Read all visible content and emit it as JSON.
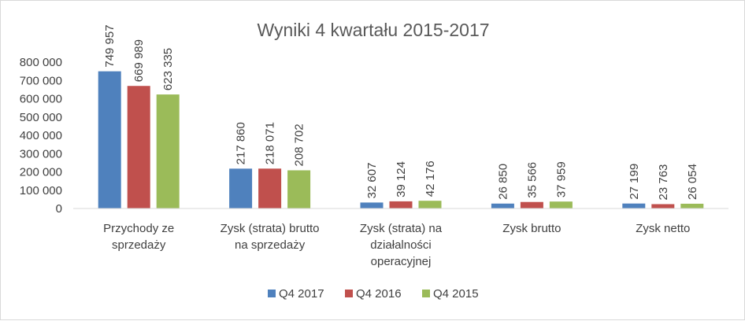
{
  "chart_data": {
    "type": "bar",
    "title": "Wyniki 4 kwartału 2015-2017",
    "categories": [
      [
        "Przychody ze",
        "sprzedaży"
      ],
      [
        "Zysk (strata) brutto",
        "na sprzedaży"
      ],
      [
        "Zysk (strata) na",
        "działalności",
        "operacyjnej"
      ],
      [
        "Zysk brutto"
      ],
      [
        "Zysk netto"
      ]
    ],
    "series": [
      {
        "name": "Q4 2017",
        "color": "#4f81bd",
        "values": [
          749957,
          217860,
          32607,
          26850,
          27199
        ],
        "labels": [
          "749 957",
          "217 860",
          "32 607",
          "26 850",
          "27 199"
        ]
      },
      {
        "name": "Q4 2016",
        "color": "#c0504d",
        "values": [
          669989,
          218071,
          39124,
          35566,
          23763
        ],
        "labels": [
          "669 989",
          "218 071",
          "39 124",
          "35 566",
          "23 763"
        ]
      },
      {
        "name": "Q4 2015",
        "color": "#9bbb59",
        "values": [
          623335,
          208702,
          42176,
          37959,
          26054
        ],
        "labels": [
          "623 335",
          "208 702",
          "42 176",
          "37 959",
          "26 054"
        ]
      }
    ],
    "yticks": [
      {
        "value": 0,
        "label": "0"
      },
      {
        "value": 100000,
        "label": "100 000"
      },
      {
        "value": 200000,
        "label": "200 000"
      },
      {
        "value": 300000,
        "label": "300 000"
      },
      {
        "value": 400000,
        "label": "400 000"
      },
      {
        "value": 500000,
        "label": "500 000"
      },
      {
        "value": 600000,
        "label": "600 000"
      },
      {
        "value": 700000,
        "label": "700 000"
      },
      {
        "value": 800000,
        "label": "800 000"
      }
    ],
    "ylim": [
      0,
      800000
    ],
    "grid": false,
    "legend": "bottom"
  }
}
